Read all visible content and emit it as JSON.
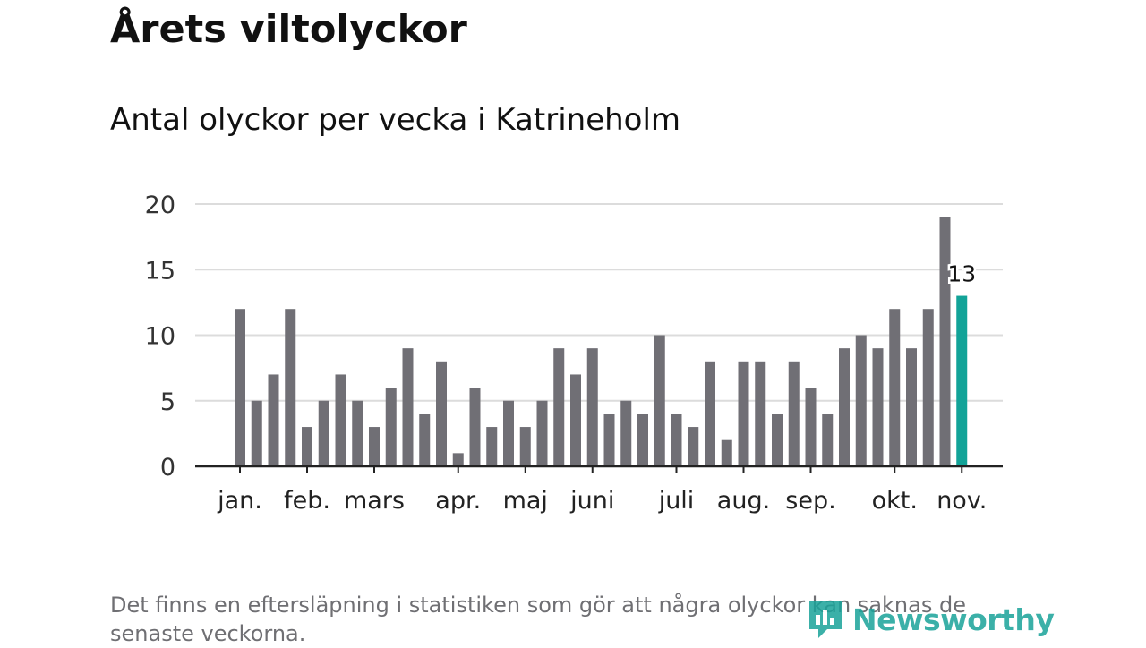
{
  "header": {
    "title": "Årets viltolyckor",
    "subtitle": "Antal olyckor per vecka i Katrineholm"
  },
  "footer": {
    "note": "Det finns en eftersläpning i statistiken som gör att några olyckor kan saknas de senaste veckorna.",
    "brand": "Newsworthy"
  },
  "colors": {
    "bar": "#706f75",
    "highlight": "#12a398",
    "grid": "#dcdcdc",
    "axis": "#222222",
    "brand": "#1aa39a"
  },
  "chart_data": {
    "type": "bar",
    "title": "Antal olyckor per vecka i Katrineholm",
    "xlabel": "",
    "ylabel": "",
    "ylim": [
      0,
      20
    ],
    "yticks": [
      0,
      5,
      10,
      15,
      20
    ],
    "grid": true,
    "values": [
      12,
      5,
      7,
      12,
      3,
      5,
      7,
      5,
      3,
      6,
      9,
      4,
      8,
      1,
      6,
      3,
      5,
      3,
      5,
      9,
      7,
      9,
      4,
      5,
      4,
      10,
      4,
      3,
      8,
      2,
      8,
      8,
      4,
      8,
      6,
      4,
      9,
      10,
      9,
      12,
      9,
      12,
      19,
      13
    ],
    "highlight_index": 43,
    "highlight_label": "13",
    "month_labels": [
      {
        "label": "jan.",
        "week": 1
      },
      {
        "label": "feb.",
        "week": 5
      },
      {
        "label": "mars",
        "week": 9
      },
      {
        "label": "apr.",
        "week": 14
      },
      {
        "label": "maj",
        "week": 18
      },
      {
        "label": "juni",
        "week": 22
      },
      {
        "label": "juli",
        "week": 27
      },
      {
        "label": "aug.",
        "week": 31
      },
      {
        "label": "sep.",
        "week": 35
      },
      {
        "label": "okt.",
        "week": 40
      },
      {
        "label": "nov.",
        "week": 44
      }
    ]
  }
}
